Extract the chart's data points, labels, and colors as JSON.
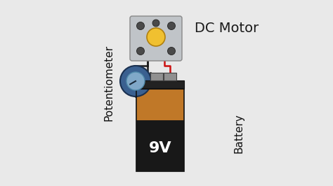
{
  "bg_color": "#e9e9e9",
  "dc_motor_label": "DC Motor",
  "potentiometer_label": "Potentiometer",
  "battery_label": "Battery",
  "battery_voltage": "9V",
  "wire_red": "#cc1111",
  "wire_black": "#1a1a1a",
  "motor_body_color": "#c0c4c8",
  "motor_screw_color": "#4a4a4a",
  "motor_center_color": "#f0c030",
  "motor_center_edge": "#b08010",
  "pot_body_color": "#3a6090",
  "pot_inner_color": "#80a8c8",
  "pot_knob_color": "#a0bcd0",
  "battery_top_color": "#222222",
  "battery_terminal_color": "#909090",
  "battery_orange_color": "#c07828",
  "battery_black_color": "#181818",
  "font_size_label": 11,
  "font_size_voltage": 16
}
